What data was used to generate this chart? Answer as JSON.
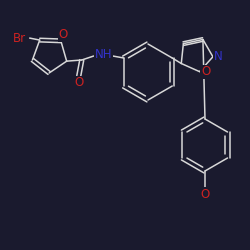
{
  "bg_color": "#1a1a2e",
  "bond_color": "#d8d8d8",
  "atom_colors": {
    "Br": "#cc2222",
    "O": "#cc2222",
    "N": "#3333cc",
    "NH": "#3333cc"
  },
  "font_size": 8.5,
  "lw": 1.1
}
